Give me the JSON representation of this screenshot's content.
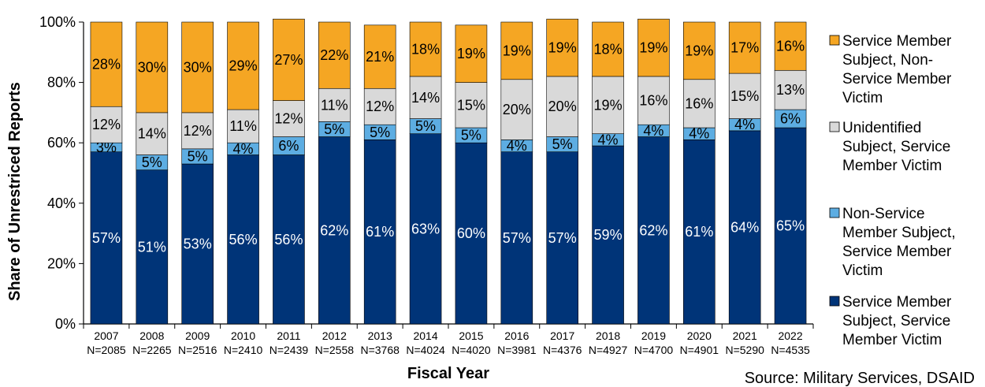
{
  "chart_data": {
    "type": "bar",
    "stacked": true,
    "xlabel": "Fiscal Year",
    "ylabel": "Share of Unrestriced Reports",
    "ylim": [
      0,
      100
    ],
    "yticks": [
      "0%",
      "20%",
      "40%",
      "60%",
      "80%",
      "100%"
    ],
    "categories": [
      "2007",
      "2008",
      "2009",
      "2010",
      "2011",
      "2012",
      "2013",
      "2014",
      "2015",
      "2016",
      "2017",
      "2018",
      "2019",
      "2020",
      "2021",
      "2022"
    ],
    "category_n": [
      "N=2085",
      "N=2265",
      "N=2516",
      "N=2410",
      "N=2439",
      "N=2558",
      "N=3768",
      "N=4024",
      "N=4020",
      "N=3981",
      "N=4376",
      "N=4927",
      "N=4700",
      "N=4901",
      "N=5290",
      "N=4535"
    ],
    "series": [
      {
        "name": "Service Member Subject, Service Member Victim",
        "color": "#003478",
        "label_color": "#ffffff",
        "values": [
          57,
          51,
          53,
          56,
          56,
          62,
          61,
          63,
          60,
          57,
          57,
          59,
          62,
          61,
          64,
          65
        ]
      },
      {
        "name": "Non-Service Member Subject, Service Member Victim",
        "color": "#5DADE2",
        "label_color": "#000000",
        "values": [
          3,
          5,
          5,
          4,
          6,
          5,
          5,
          5,
          5,
          4,
          5,
          4,
          4,
          4,
          4,
          6
        ]
      },
      {
        "name": "Unidentified Subject, Service Member Victim",
        "color": "#D9D9D9",
        "label_color": "#000000",
        "values": [
          12,
          14,
          12,
          11,
          12,
          11,
          12,
          14,
          15,
          20,
          20,
          19,
          16,
          16,
          15,
          13
        ]
      },
      {
        "name": "Service Member Subject, Non-Service Member Victim",
        "color": "#F5A623",
        "label_color": "#000000",
        "values": [
          28,
          30,
          30,
          29,
          27,
          22,
          21,
          18,
          19,
          19,
          19,
          18,
          19,
          19,
          17,
          16
        ]
      }
    ],
    "legend": {
      "placement": "right",
      "entries": [
        {
          "series": 3,
          "lines": [
            "Service Member",
            "Subject, Non-",
            "Service Member",
            "Victim"
          ]
        },
        {
          "series": 2,
          "lines": [
            "Unidentified",
            "Subject, Service",
            "Member Victim"
          ]
        },
        {
          "series": 1,
          "lines": [
            "Non-Service",
            "Member Subject,",
            "Service Member",
            "Victim"
          ]
        },
        {
          "series": 0,
          "lines": [
            "Service Member",
            "Subject, Service",
            "Member Victim"
          ]
        }
      ]
    },
    "source": "Source: Military Services, DSAID"
  }
}
